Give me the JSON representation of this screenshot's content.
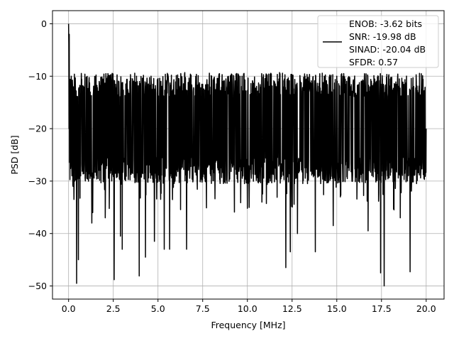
{
  "chart_data": {
    "type": "line",
    "title": "",
    "xlabel": "Frequency [MHz]",
    "ylabel": "PSD [dB]",
    "xlim": [
      -0.9,
      21.0
    ],
    "ylim": [
      -52.5,
      2.5
    ],
    "xticks": [
      0.0,
      2.5,
      5.0,
      7.5,
      10.0,
      12.5,
      15.0,
      17.5,
      20.0
    ],
    "xtick_labels": [
      "0.0",
      "2.5",
      "5.0",
      "7.5",
      "10.0",
      "12.5",
      "15.0",
      "17.5",
      "20.0"
    ],
    "yticks": [
      0,
      -10,
      -20,
      -30,
      -40,
      -50
    ],
    "ytick_labels": [
      "0",
      "−10",
      "−20",
      "−30",
      "−40",
      "−50"
    ],
    "grid": true,
    "legend_position": "top-right",
    "line_color": "#000000",
    "series": [
      {
        "name": "ENOB: -3.62 bits\nSNR: -19.98 dB\nSINAD: -20.04 dB\nSFDR: 0.57",
        "x_range": [
          0.0,
          20.0
        ],
        "peak": {
          "x": 0.0,
          "y": 0.0
        },
        "noise_band": {
          "typical_min": -27,
          "typical_max": -13,
          "median": -20
        },
        "notable_points": [
          {
            "x": 0.15,
            "y": -33.5
          },
          {
            "x": 0.3,
            "y": -33.5
          },
          {
            "x": 0.45,
            "y": -49.5
          },
          {
            "x": 0.55,
            "y": -45
          },
          {
            "x": 1.3,
            "y": -38
          },
          {
            "x": 1.35,
            "y": -36
          },
          {
            "x": 2.05,
            "y": -37
          },
          {
            "x": 2.2,
            "y": -42
          },
          {
            "x": 2.55,
            "y": -48.8
          },
          {
            "x": 2.9,
            "y": -40.5
          },
          {
            "x": 3.0,
            "y": -43
          },
          {
            "x": 3.95,
            "y": -48.1
          },
          {
            "x": 4.3,
            "y": -44.5
          },
          {
            "x": 4.8,
            "y": -41.5
          },
          {
            "x": 5.35,
            "y": -43
          },
          {
            "x": 5.65,
            "y": -43
          },
          {
            "x": 6.5,
            "y": -40
          },
          {
            "x": 6.6,
            "y": -43
          },
          {
            "x": 12.15,
            "y": -46.5
          },
          {
            "x": 12.4,
            "y": -43.5
          },
          {
            "x": 12.8,
            "y": -40
          },
          {
            "x": 13.8,
            "y": -43.5
          },
          {
            "x": 14.8,
            "y": -38.5
          },
          {
            "x": 16.75,
            "y": -39.5
          },
          {
            "x": 17.45,
            "y": -47.5
          },
          {
            "x": 17.65,
            "y": -50.0
          },
          {
            "x": 17.9,
            "y": -38.5
          },
          {
            "x": 18.2,
            "y": -35.5
          },
          {
            "x": 18.55,
            "y": -37
          },
          {
            "x": 19.1,
            "y": -47.3
          },
          {
            "x": 19.7,
            "y": -28.5
          },
          {
            "x": 20.0,
            "y": -20
          }
        ],
        "high_points": [
          {
            "x": 0.15,
            "y": -10
          },
          {
            "x": 2.2,
            "y": -9.5
          },
          {
            "x": 3.8,
            "y": -10
          },
          {
            "x": 6.5,
            "y": -9.3
          },
          {
            "x": 8.8,
            "y": -10.5
          },
          {
            "x": 10.8,
            "y": -9.5
          },
          {
            "x": 11.8,
            "y": -9.3
          },
          {
            "x": 14.3,
            "y": -10
          },
          {
            "x": 14.6,
            "y": -9.8
          },
          {
            "x": 17.9,
            "y": -10
          },
          {
            "x": 18.5,
            "y": -10.5
          }
        ]
      }
    ]
  }
}
